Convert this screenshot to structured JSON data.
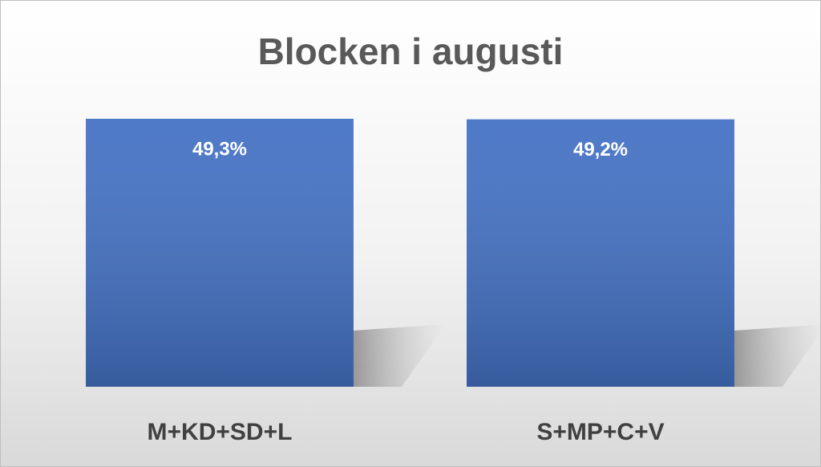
{
  "chart_data": {
    "type": "bar",
    "title": "Blocken i augusti",
    "categories": [
      "M+KD+SD+L",
      "S+MP+C+V"
    ],
    "values": [
      49.3,
      49.2
    ],
    "value_labels": [
      "49,3%",
      "49,2%"
    ],
    "color": "#4472c4"
  }
}
